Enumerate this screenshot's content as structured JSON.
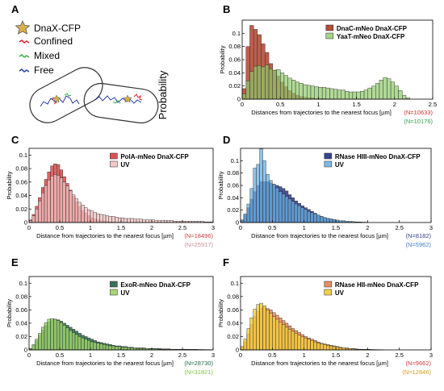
{
  "figure": {
    "panel_a": {
      "letter": "A",
      "legend": {
        "dnax": "DnaX-CFP",
        "confined": "Confined",
        "mixed": "Mixed",
        "free": "Free"
      },
      "ylabel": "Probability",
      "colors": {
        "star": "#d8b24a",
        "confined": "#e0212b",
        "mixed": "#36b04a",
        "free": "#2a3fa8"
      }
    }
  },
  "chart_data": [
    {
      "id": "B",
      "type": "bar",
      "letter": "B",
      "xlabel": "Distances from trajectories to the nearest focus [µm]",
      "ylabel": "Probability",
      "xlim": [
        0,
        2.5
      ],
      "ylim": [
        0,
        0.12
      ],
      "xticks": [
        "0",
        "0.5",
        "1",
        "1.5",
        "2",
        "2.5"
      ],
      "xtick_values": [
        0,
        0.5,
        1,
        1.5,
        2,
        2.5
      ],
      "yticks": [
        "0",
        "0.02",
        "0.04",
        "0.06",
        "0.08",
        "0.1"
      ],
      "ytick_values": [
        0,
        0.02,
        0.04,
        0.06,
        0.08,
        0.1
      ],
      "legend": [
        "DnaC-mNeo DnaX-CFP",
        "YaaT-mNeo DnaX-CFP"
      ],
      "counts": [
        "(N=10633)",
        "(N=10176)"
      ],
      "count_colors": [
        "#d03030",
        "#2e9a4a"
      ],
      "bin_width": 0.05,
      "series": [
        {
          "name": "DnaC-mNeo DnaX-CFP",
          "color": "#b2432c",
          "alpha": 0.85,
          "values": [
            0.016,
            0.08,
            0.112,
            0.106,
            0.098,
            0.084,
            0.071,
            0.054,
            0.044,
            0.035,
            0.026,
            0.019,
            0.013,
            0.009,
            0.006,
            0.004,
            0.003,
            0.002,
            0.002,
            0.001,
            0.001,
            0.001,
            0.0005,
            0.0005,
            0.0004,
            0.0003,
            0.0002,
            0.0002,
            0.0001,
            0.0001,
            0.0001,
            0.0001,
            0,
            0,
            0,
            0,
            0,
            0,
            0,
            0,
            0,
            0,
            0,
            0,
            0,
            0,
            0,
            0,
            0,
            0
          ]
        },
        {
          "name": "YaaT-mNeo DnaX-CFP",
          "color": "#8ec96a",
          "alpha": 0.7,
          "values": [
            0.008,
            0.028,
            0.042,
            0.05,
            0.051,
            0.049,
            0.052,
            0.046,
            0.044,
            0.045,
            0.04,
            0.036,
            0.032,
            0.029,
            0.026,
            0.024,
            0.022,
            0.021,
            0.02,
            0.019,
            0.018,
            0.018,
            0.017,
            0.016,
            0.015,
            0.014,
            0.014,
            0.012,
            0.011,
            0.011,
            0.011,
            0.012,
            0.014,
            0.017,
            0.02,
            0.024,
            0.029,
            0.033,
            0.031,
            0.026,
            0.02,
            0.013,
            0.006,
            0.002,
            0,
            0,
            0,
            0,
            0,
            0
          ]
        }
      ]
    },
    {
      "id": "C",
      "type": "bar",
      "letter": "C",
      "xlabel": "Distance from trajectories to the nearest focus [µm]",
      "ylabel": "Probability",
      "xlim": [
        0,
        3
      ],
      "ylim": [
        0,
        0.11
      ],
      "xticks": [
        "0",
        "0.5",
        "1",
        "1.5",
        "2",
        "2.5",
        "3"
      ],
      "xtick_values": [
        0,
        0.5,
        1,
        1.5,
        2,
        2.5,
        3
      ],
      "yticks": [
        "0",
        "0.02",
        "0.04",
        "0.06",
        "0.08",
        "0.1"
      ],
      "ytick_values": [
        0,
        0.02,
        0.04,
        0.06,
        0.08,
        0.1
      ],
      "legend": [
        "PolA-mNeo DnaX-CFP",
        "UV"
      ],
      "counts": [
        "(N=18496)",
        "(N=25917)"
      ],
      "count_colors": [
        "#c44040",
        "#c98f96"
      ],
      "bin_width": 0.05,
      "series": [
        {
          "name": "PolA-mNeo DnaX-CFP",
          "color": "#d94a4a",
          "alpha": 0.85,
          "values": [
            0.004,
            0.012,
            0.024,
            0.037,
            0.052,
            0.064,
            0.075,
            0.084,
            0.087,
            0.086,
            0.078,
            0.068,
            0.058,
            0.048,
            0.039,
            0.031,
            0.024,
            0.018,
            0.014,
            0.01,
            0.007,
            0.005,
            0.004,
            0.003,
            0.002,
            0.0015,
            0.001,
            0.0008,
            0.0006,
            0.0005,
            0.0003,
            0.0002,
            0.0002,
            0.0001,
            0.0001,
            0.0001,
            0,
            0,
            0,
            0,
            0,
            0,
            0,
            0,
            0,
            0,
            0,
            0,
            0,
            0,
            0,
            0,
            0,
            0,
            0,
            0,
            0,
            0,
            0,
            0
          ]
        },
        {
          "name": "UV",
          "color": "#f2c0c0",
          "alpha": 0.75,
          "values": [
            0.003,
            0.01,
            0.02,
            0.032,
            0.044,
            0.055,
            0.063,
            0.069,
            0.071,
            0.07,
            0.066,
            0.06,
            0.054,
            0.047,
            0.041,
            0.035,
            0.03,
            0.026,
            0.022,
            0.019,
            0.017,
            0.015,
            0.013,
            0.012,
            0.011,
            0.01,
            0.009,
            0.009,
            0.008,
            0.007,
            0.007,
            0.006,
            0.006,
            0.006,
            0.005,
            0.005,
            0.005,
            0.004,
            0.004,
            0.004,
            0.004,
            0.003,
            0.003,
            0.003,
            0.003,
            0.003,
            0.003,
            0.002,
            0.002,
            0.002,
            0.002,
            0.002,
            0.002,
            0.002,
            0.002,
            0.002,
            0.002,
            0.001,
            0.001,
            0.001
          ]
        }
      ]
    },
    {
      "id": "D",
      "type": "bar",
      "letter": "D",
      "xlabel": "Distance from trajectories to the nearest focus [µm]",
      "ylabel": "Probability",
      "xlim": [
        0,
        3
      ],
      "ylim": [
        0,
        0.12
      ],
      "xticks": [
        "0",
        "0.5",
        "1",
        "1.5",
        "2",
        "2.5",
        "3"
      ],
      "xtick_values": [
        0,
        0.5,
        1,
        1.5,
        2,
        2.5,
        3
      ],
      "yticks": [
        "0",
        "0.02",
        "0.04",
        "0.06",
        "0.08",
        "0.1"
      ],
      "ytick_values": [
        0,
        0.02,
        0.04,
        0.06,
        0.08,
        0.1
      ],
      "legend": [
        "RNase HIII-mNeo DnaX-CFP",
        "UV"
      ],
      "counts": [
        "(N=8182)",
        "(N=5962)"
      ],
      "count_colors": [
        "#2f3f8f",
        "#3f7fcf"
      ],
      "bin_width": 0.05,
      "series": [
        {
          "name": "RNase HIII-mNeo DnaX-CFP",
          "color": "#2e3a8c",
          "alpha": 0.85,
          "values": [
            0.004,
            0.012,
            0.024,
            0.038,
            0.05,
            0.06,
            0.066,
            0.066,
            0.066,
            0.064,
            0.062,
            0.06,
            0.058,
            0.055,
            0.051,
            0.045,
            0.04,
            0.035,
            0.031,
            0.027,
            0.024,
            0.021,
            0.018,
            0.015,
            0.012,
            0.01,
            0.008,
            0.006,
            0.005,
            0.004,
            0.003,
            0.002,
            0.002,
            0.0015,
            0.001,
            0.001,
            0.0008,
            0.0006,
            0.0005,
            0.0003,
            0,
            0,
            0,
            0,
            0,
            0,
            0,
            0,
            0,
            0,
            0,
            0,
            0,
            0,
            0,
            0,
            0,
            0,
            0,
            0
          ]
        },
        {
          "name": "UV",
          "color": "#68aee0",
          "alpha": 0.75,
          "values": [
            0.004,
            0.014,
            0.03,
            0.055,
            0.088,
            0.094,
            0.119,
            0.1,
            0.078,
            0.068,
            0.062,
            0.056,
            0.05,
            0.046,
            0.042,
            0.038,
            0.034,
            0.03,
            0.027,
            0.024,
            0.021,
            0.018,
            0.016,
            0.014,
            0.012,
            0.01,
            0.008,
            0.007,
            0.006,
            0.005,
            0.004,
            0.003,
            0.003,
            0.002,
            0.002,
            0.0015,
            0.001,
            0.001,
            0.0005,
            0.0005,
            0,
            0,
            0,
            0,
            0,
            0,
            0,
            0,
            0,
            0,
            0,
            0,
            0,
            0,
            0,
            0,
            0,
            0,
            0,
            0
          ]
        }
      ]
    },
    {
      "id": "E",
      "type": "bar",
      "letter": "E",
      "xlabel": "Distance from trajectories to the nearest focus [µm]",
      "ylabel": "Probability",
      "xlim": [
        0,
        3
      ],
      "ylim": [
        0,
        0.11
      ],
      "xticks": [
        "0",
        "0.5",
        "1",
        "1.5",
        "2",
        "2.5",
        "3"
      ],
      "xtick_values": [
        0,
        0.5,
        1,
        1.5,
        2,
        2.5,
        3
      ],
      "yticks": [
        "0",
        "0.02",
        "0.04",
        "0.06",
        "0.08",
        "0.1"
      ],
      "ytick_values": [
        0,
        0.02,
        0.04,
        0.06,
        0.08,
        0.1
      ],
      "legend": [
        "ExoR-mNeo DnaX-CFP",
        "UV"
      ],
      "counts": [
        "(N=28730)",
        "(N=31821)"
      ],
      "count_colors": [
        "#1f6a4a",
        "#7fbf3f"
      ],
      "bin_width": 0.05,
      "series": [
        {
          "name": "ExoR-mNeo DnaX-CFP",
          "color": "#2c6b4f",
          "alpha": 0.85,
          "values": [
            0.002,
            0.007,
            0.014,
            0.022,
            0.03,
            0.037,
            0.042,
            0.045,
            0.046,
            0.045,
            0.043,
            0.04,
            0.037,
            0.034,
            0.031,
            0.028,
            0.025,
            0.022,
            0.02,
            0.018,
            0.016,
            0.014,
            0.012,
            0.011,
            0.01,
            0.009,
            0.008,
            0.007,
            0.006,
            0.006,
            0.005,
            0.005,
            0.004,
            0.004,
            0.003,
            0.003,
            0.003,
            0.003,
            0.002,
            0.002,
            0.002,
            0.002,
            0.002,
            0.0015,
            0.0015,
            0.0015,
            0.001,
            0.001,
            0.001,
            0.001,
            0.001,
            0.001,
            0.0008,
            0.0008,
            0.0008,
            0.0006,
            0.0006,
            0.0005,
            0.0005,
            0.0004
          ]
        },
        {
          "name": "UV",
          "color": "#9ed36a",
          "alpha": 0.8,
          "values": [
            0.002,
            0.008,
            0.016,
            0.025,
            0.034,
            0.041,
            0.046,
            0.047,
            0.046,
            0.044,
            0.041,
            0.037,
            0.033,
            0.029,
            0.026,
            0.023,
            0.02,
            0.018,
            0.016,
            0.014,
            0.012,
            0.011,
            0.01,
            0.009,
            0.008,
            0.007,
            0.006,
            0.006,
            0.005,
            0.005,
            0.004,
            0.004,
            0.003,
            0.003,
            0.003,
            0.002,
            0.002,
            0.002,
            0.002,
            0.0015,
            0.0015,
            0.0015,
            0.001,
            0.001,
            0.001,
            0.001,
            0.001,
            0.0008,
            0.0008,
            0.0008,
            0.0006,
            0.0006,
            0.0005,
            0.0005,
            0.0004,
            0.0004,
            0.0003,
            0.0003,
            0.0002,
            0.0002
          ]
        }
      ]
    },
    {
      "id": "F",
      "type": "bar",
      "letter": "F",
      "xlabel": "Distance from trajectories to the nearest focus [µm]",
      "ylabel": "Probability",
      "xlim": [
        0,
        3
      ],
      "ylim": [
        0,
        0.11
      ],
      "xticks": [
        "0",
        "0.5",
        "1",
        "1.5",
        "2",
        "2.5",
        "3"
      ],
      "xtick_values": [
        0,
        0.5,
        1,
        1.5,
        2,
        2.5,
        3
      ],
      "yticks": [
        "0",
        "0.02",
        "0.04",
        "0.06",
        "0.08",
        "0.1"
      ],
      "ytick_values": [
        0,
        0.02,
        0.04,
        0.06,
        0.08,
        0.1
      ],
      "legend": [
        "RNase HII-mNeo DnaX-CFP",
        "UV"
      ],
      "counts": [
        "(N=9662)",
        "(N=12846)"
      ],
      "count_colors": [
        "#d04040",
        "#d49a2a"
      ],
      "bin_width": 0.05,
      "series": [
        {
          "name": "RNase HII-mNeo DnaX-CFP",
          "color": "#e8875a",
          "alpha": 0.85,
          "values": [
            0.004,
            0.012,
            0.024,
            0.038,
            0.05,
            0.058,
            0.062,
            0.064,
            0.062,
            0.06,
            0.056,
            0.052,
            0.048,
            0.044,
            0.04,
            0.036,
            0.032,
            0.029,
            0.026,
            0.023,
            0.02,
            0.018,
            0.016,
            0.014,
            0.012,
            0.01,
            0.009,
            0.008,
            0.007,
            0.006,
            0.005,
            0.004,
            0.003,
            0.003,
            0.002,
            0.002,
            0.0015,
            0.001,
            0.001,
            0.001,
            0.0008,
            0.0006,
            0.0005,
            0.0004,
            0.0003,
            0,
            0,
            0,
            0,
            0,
            0,
            0,
            0,
            0,
            0,
            0,
            0,
            0,
            0,
            0
          ]
        },
        {
          "name": "UV",
          "color": "#f2cc3a",
          "alpha": 0.8,
          "values": [
            0.005,
            0.016,
            0.032,
            0.048,
            0.061,
            0.068,
            0.07,
            0.066,
            0.06,
            0.055,
            0.05,
            0.046,
            0.042,
            0.038,
            0.034,
            0.031,
            0.028,
            0.025,
            0.022,
            0.02,
            0.018,
            0.016,
            0.014,
            0.012,
            0.01,
            0.009,
            0.008,
            0.007,
            0.006,
            0.005,
            0.004,
            0.003,
            0.003,
            0.002,
            0.002,
            0.0015,
            0.001,
            0.001,
            0.0008,
            0.0006,
            0.0005,
            0.0004,
            0.0003,
            0.0002,
            0.0001,
            0,
            0,
            0,
            0,
            0,
            0,
            0,
            0,
            0,
            0,
            0,
            0,
            0,
            0,
            0
          ]
        }
      ]
    }
  ]
}
